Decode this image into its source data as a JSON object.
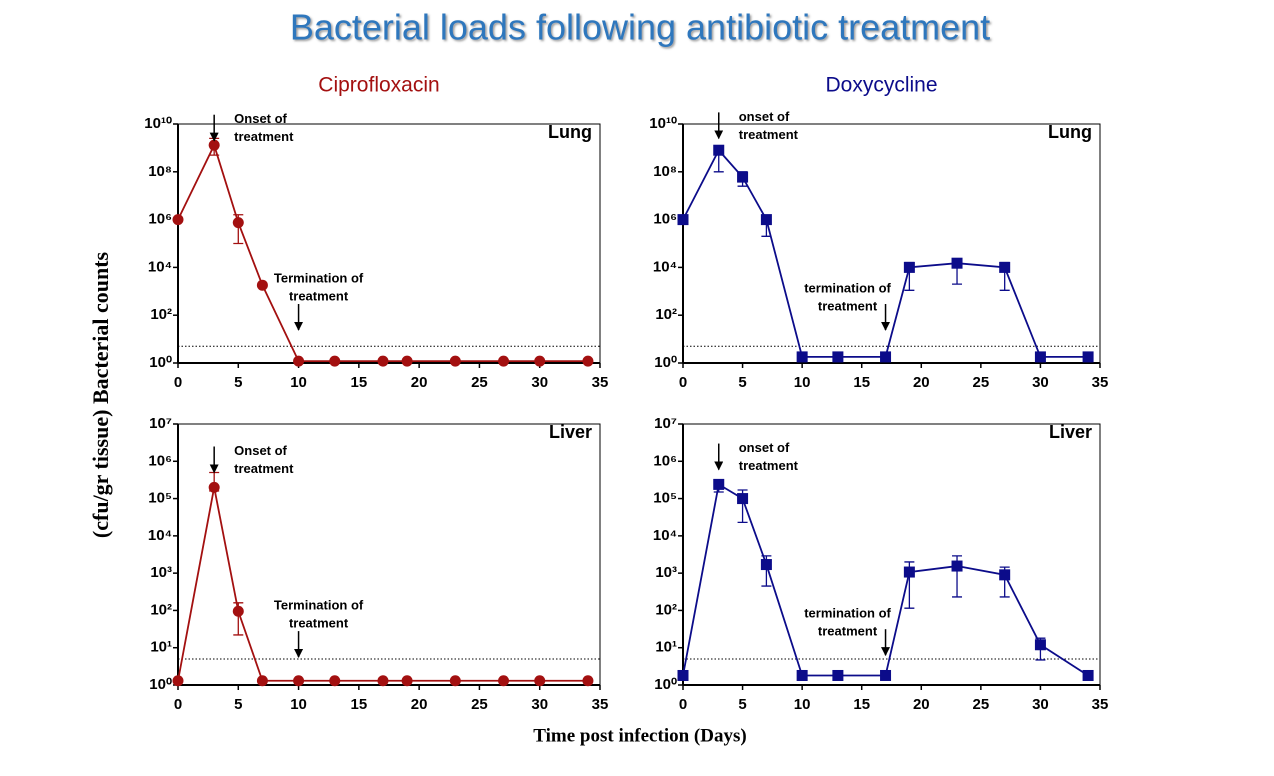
{
  "title": "Bacterial loads following antibiotic treatment",
  "y_label": "(cfu/gr tissue)  Bacterial counts",
  "x_label": "Time post infection (Days)",
  "chart_data": [
    {
      "type": "line",
      "title": "Ciprofloxacin",
      "panel_label": "Lung",
      "color": "#a31010",
      "marker": "circle",
      "log_y": true,
      "x": [
        0,
        3,
        5,
        7,
        10,
        13,
        17,
        19,
        23,
        27,
        30,
        34
      ],
      "values": [
        1000000,
        1300000000,
        750000,
        1800,
        1.2,
        1.2,
        1.2,
        1.2,
        1.2,
        1.2,
        1.2,
        1.2
      ],
      "lower": [
        null,
        500000000,
        100000,
        null,
        null,
        null,
        null,
        null,
        null,
        null,
        null,
        null
      ],
      "upper": [
        null,
        2500000000,
        1600000,
        null,
        null,
        null,
        null,
        null,
        null,
        null,
        null,
        null
      ],
      "xlim": [
        0,
        35
      ],
      "xticks": [
        0,
        5,
        10,
        15,
        20,
        25,
        30,
        35
      ],
      "ylim": [
        1,
        10000000000
      ],
      "yticks": [
        {
          "value": 1,
          "label": "10⁰"
        },
        {
          "value": 100,
          "label": "10²"
        },
        {
          "value": 10000,
          "label": "10⁴"
        },
        {
          "value": 1000000,
          "label": "10⁶"
        },
        {
          "value": 100000000,
          "label": "10⁸"
        },
        {
          "value": 10000000000,
          "label": "10¹⁰"
        }
      ],
      "detection_limit": 5,
      "annotations": [
        {
          "lines": [
            "Onset of",
            "treatment"
          ],
          "x": 3,
          "y": 2000000000
        },
        {
          "lines": [
            "Termination of",
            "treatment"
          ],
          "x": 10,
          "y": 24
        }
      ]
    },
    {
      "type": "line",
      "title": "Doxycycline",
      "panel_label": "Lung",
      "color": "#0c0c8a",
      "marker": "square",
      "log_y": true,
      "x": [
        0,
        3,
        5,
        7,
        10,
        13,
        17,
        19,
        23,
        27,
        30,
        34
      ],
      "values": [
        1000000,
        800000000,
        60000000,
        1000000,
        1.8,
        1.8,
        1.8,
        10000,
        15000,
        10000,
        1.8,
        1.8
      ],
      "lower": [
        null,
        100000000,
        25000000,
        200000,
        null,
        null,
        null,
        1100,
        2000,
        1100,
        null,
        null
      ],
      "upper": [
        null,
        1100000000,
        100000000,
        1300000,
        null,
        null,
        null,
        16000,
        20000,
        16000,
        null,
        null
      ],
      "xlim": [
        0,
        35
      ],
      "xticks": [
        0,
        5,
        10,
        15,
        20,
        25,
        30,
        35
      ],
      "ylim": [
        1,
        10000000000
      ],
      "yticks": [
        {
          "value": 1,
          "label": "10⁰"
        },
        {
          "value": 100,
          "label": "10²"
        },
        {
          "value": 10000,
          "label": "10⁴"
        },
        {
          "value": 1000000,
          "label": "10⁶"
        },
        {
          "value": 100000000,
          "label": "10⁸"
        },
        {
          "value": 10000000000,
          "label": "10¹⁰"
        }
      ],
      "detection_limit": 5,
      "annotations": [
        {
          "lines": [
            "onset of",
            "treatment"
          ],
          "x": 3,
          "y": 2500000000
        },
        {
          "lines": [
            "termination of",
            "treatment"
          ],
          "x": 17,
          "y": 24
        }
      ]
    },
    {
      "type": "line",
      "panel_label": "Liver",
      "color": "#a31010",
      "marker": "circle",
      "log_y": true,
      "x": [
        0,
        3,
        5,
        7,
        10,
        13,
        17,
        19,
        23,
        27,
        30,
        34
      ],
      "values": [
        1.3,
        200000,
        95,
        1.3,
        1.3,
        1.3,
        1.3,
        1.3,
        1.3,
        1.3,
        1.3,
        1.3
      ],
      "lower": [
        null,
        160000,
        22,
        null,
        null,
        null,
        null,
        null,
        null,
        null,
        null,
        null
      ],
      "upper": [
        null,
        500000,
        160,
        null,
        null,
        null,
        null,
        null,
        null,
        null,
        null,
        null
      ],
      "xlim": [
        0,
        35
      ],
      "xticks": [
        0,
        5,
        10,
        15,
        20,
        25,
        30,
        35
      ],
      "ylim": [
        1,
        10000000
      ],
      "yticks": [
        {
          "value": 1,
          "label": "10⁰"
        },
        {
          "value": 10,
          "label": "10¹"
        },
        {
          "value": 100,
          "label": "10²"
        },
        {
          "value": 1000,
          "label": "10³"
        },
        {
          "value": 10000,
          "label": "10⁴"
        },
        {
          "value": 100000,
          "label": "10⁵"
        },
        {
          "value": 1000000,
          "label": "10⁶"
        },
        {
          "value": 10000000,
          "label": "10⁷"
        }
      ],
      "detection_limit": 5,
      "annotations": [
        {
          "lines": [
            "Onset of",
            "treatment"
          ],
          "x": 3,
          "y": 500000
        },
        {
          "lines": [
            "Termination of",
            "treatment"
          ],
          "x": 10,
          "y": 5.6
        }
      ]
    },
    {
      "type": "line",
      "panel_label": "Liver",
      "color": "#0c0c8a",
      "marker": "square",
      "log_y": true,
      "x": [
        0,
        3,
        5,
        7,
        10,
        13,
        17,
        19,
        23,
        27,
        30,
        34
      ],
      "values": [
        1.8,
        240000,
        100000,
        1700,
        1.8,
        1.8,
        1.8,
        1070,
        1550,
        900,
        12,
        1.8
      ],
      "lower": [
        null,
        150000,
        23000,
        450,
        null,
        null,
        null,
        115,
        230,
        230,
        4.7,
        null
      ],
      "upper": [
        null,
        300000,
        170000,
        2900,
        null,
        null,
        null,
        2000,
        2900,
        1450,
        18,
        null
      ],
      "xlim": [
        0,
        35
      ],
      "xticks": [
        0,
        5,
        10,
        15,
        20,
        25,
        30,
        35
      ],
      "ylim": [
        1,
        10000000
      ],
      "yticks": [
        {
          "value": 1,
          "label": "10⁰"
        },
        {
          "value": 10,
          "label": "10¹"
        },
        {
          "value": 100,
          "label": "10²"
        },
        {
          "value": 1000,
          "label": "10³"
        },
        {
          "value": 10000,
          "label": "10⁴"
        },
        {
          "value": 100000,
          "label": "10⁵"
        },
        {
          "value": 1000000,
          "label": "10⁶"
        },
        {
          "value": 10000000,
          "label": "10⁷"
        }
      ],
      "detection_limit": 5,
      "annotations": [
        {
          "lines": [
            "onset of",
            "treatment"
          ],
          "x": 3,
          "y": 600000
        },
        {
          "lines": [
            "termination of",
            "treatment"
          ],
          "x": 17,
          "y": 6.3
        }
      ]
    }
  ]
}
